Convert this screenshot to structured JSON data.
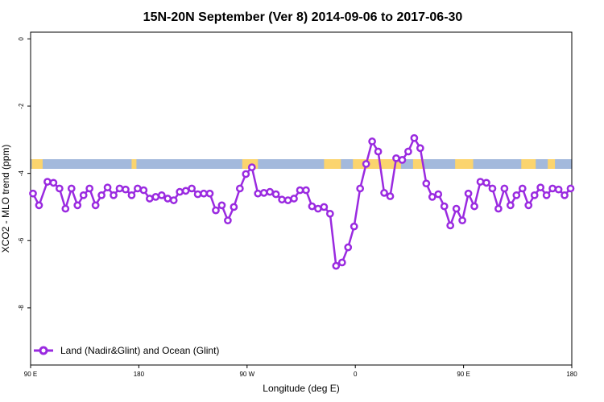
{
  "chart_data": {
    "type": "line",
    "title": "15N-20N September (Ver 8)   2014-09-06 to 2017-06-30",
    "xlabel": "Longitude (deg E)",
    "ylabel": "XCO2 - MLO trend (ppm)",
    "x_ticks": [
      {
        "value": 90,
        "label": "90 E"
      },
      {
        "value": 180,
        "label": "180"
      },
      {
        "value": 270,
        "label": "90 W"
      },
      {
        "value": 360,
        "label": "0"
      },
      {
        "value": 450,
        "label": "90 E"
      },
      {
        "value": 540,
        "label": "180"
      }
    ],
    "y_ticks": [
      {
        "value": 0,
        "label": "0"
      },
      {
        "value": -2,
        "label": "-2"
      },
      {
        "value": -4,
        "label": "-4"
      },
      {
        "value": -6,
        "label": "-6"
      },
      {
        "value": -8,
        "label": "-8"
      }
    ],
    "xlim": [
      90,
      540
    ],
    "ylim": [
      -9.7,
      0.2
    ],
    "grid": false,
    "legend_position": "bottom-left",
    "series": [
      {
        "name": "Land (Nadir&Glint) and Ocean (Glint)",
        "color": "#9a2ae0",
        "x": [
          92,
          97,
          104,
          109,
          114,
          119,
          124,
          129,
          134,
          139,
          144,
          149,
          154,
          159,
          164,
          169,
          174,
          179,
          184,
          189,
          194,
          199,
          204,
          209,
          214,
          219,
          224,
          229,
          234,
          239,
          244,
          249,
          254,
          259,
          264,
          269,
          274,
          279,
          284,
          289,
          294,
          299,
          304,
          309,
          314,
          319,
          324,
          329,
          334,
          339,
          344,
          349,
          354,
          359,
          364,
          369,
          374,
          379,
          384,
          389,
          394,
          399,
          404,
          409,
          414,
          419,
          424,
          429,
          434,
          439,
          444,
          449,
          454,
          459,
          464,
          469,
          474,
          479,
          484,
          489,
          494,
          499,
          504,
          509,
          514,
          519,
          524,
          529,
          534,
          539
        ],
        "values": [
          -4.6,
          -4.95,
          -4.25,
          -4.28,
          -4.45,
          -5.05,
          -4.45,
          -4.95,
          -4.65,
          -4.45,
          -4.95,
          -4.65,
          -4.42,
          -4.65,
          -4.45,
          -4.48,
          -4.65,
          -4.45,
          -4.5,
          -4.75,
          -4.7,
          -4.65,
          -4.75,
          -4.8,
          -4.55,
          -4.52,
          -4.45,
          -4.62,
          -4.6,
          -4.6,
          -5.1,
          -4.95,
          -5.4,
          -5.0,
          -4.45,
          -4.02,
          -3.82,
          -4.6,
          -4.58,
          -4.55,
          -4.62,
          -4.78,
          -4.8,
          -4.75,
          -4.5,
          -4.5,
          -4.98,
          -5.05,
          -5.0,
          -5.2,
          -6.75,
          -6.65,
          -6.2,
          -5.58,
          -4.45,
          -3.72,
          -3.05,
          -3.35,
          -4.58,
          -4.68,
          -3.55,
          -3.6,
          -3.35,
          -2.95,
          -3.25,
          -4.3,
          -4.7,
          -4.62,
          -4.98,
          -5.55,
          -5.05,
          -5.4,
          -4.6,
          -4.98,
          -4.25,
          -4.28,
          -4.45,
          -5.05,
          -4.45,
          -4.95,
          -4.65,
          -4.45,
          -4.95,
          -4.65,
          -4.42,
          -4.65,
          -4.45,
          -4.48,
          -4.65,
          -4.45
        ]
      }
    ]
  }
}
